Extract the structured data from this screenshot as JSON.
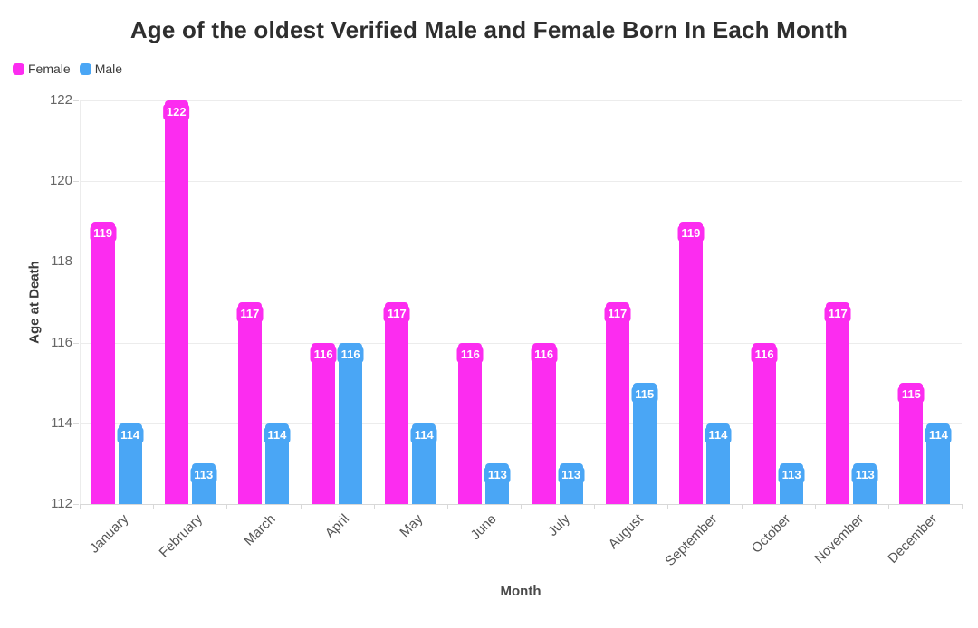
{
  "chart_data": {
    "type": "bar",
    "title": "Age of the oldest Verified Male and Female Born In Each Month",
    "xlabel": "Month",
    "ylabel": "Age at Death",
    "categories": [
      "January",
      "February",
      "March",
      "April",
      "May",
      "June",
      "July",
      "August",
      "September",
      "October",
      "November",
      "December"
    ],
    "series": [
      {
        "name": "Female",
        "color": "#fc2cf0",
        "values": [
          119,
          122,
          117,
          116,
          117,
          116,
          116,
          117,
          119,
          116,
          117,
          115
        ]
      },
      {
        "name": "Male",
        "color": "#4aa6f5",
        "values": [
          114,
          113,
          114,
          116,
          114,
          113,
          113,
          115,
          114,
          113,
          113,
          114
        ]
      }
    ],
    "ylim": [
      112,
      122
    ],
    "yticks": [
      112,
      114,
      116,
      118,
      120,
      122
    ],
    "grid": "horizontal",
    "legend_position": "top-left",
    "data_labels": "on"
  }
}
